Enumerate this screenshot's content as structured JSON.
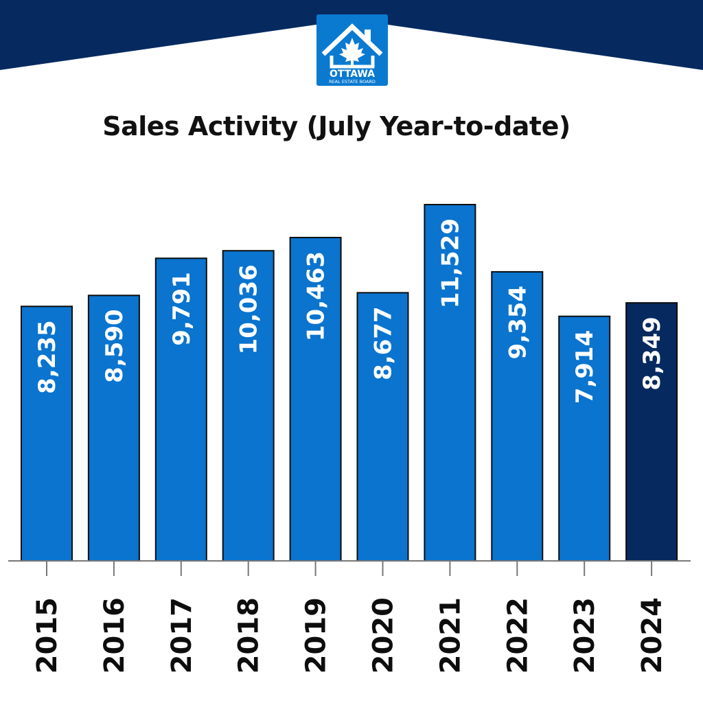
{
  "brand": {
    "logo_line1": "OTTAWA",
    "logo_line2": "REAL ESTATE BOARD",
    "header_color": "#0b2a5e",
    "logo_bg": "#0a7ad1"
  },
  "chart_data": {
    "type": "bar",
    "title": "Sales Activity (July Year-to-date)",
    "xlabel": "",
    "ylabel": "",
    "categories": [
      "2015",
      "2016",
      "2017",
      "2018",
      "2019",
      "2020",
      "2021",
      "2022",
      "2023",
      "2024"
    ],
    "values": [
      8235,
      8590,
      9791,
      10036,
      10463,
      8677,
      11529,
      9354,
      7914,
      8349
    ],
    "value_labels": [
      "8,235",
      "8,590",
      "9,791",
      "10,036",
      "10,463",
      "8,677",
      "11,529",
      "9,354",
      "7,914",
      "8,349"
    ],
    "ylim": [
      0,
      11529
    ],
    "grid": false,
    "legend": "none",
    "bar_color": "#0a74cf",
    "highlight_color": "#062a60",
    "highlight_index": 9
  }
}
